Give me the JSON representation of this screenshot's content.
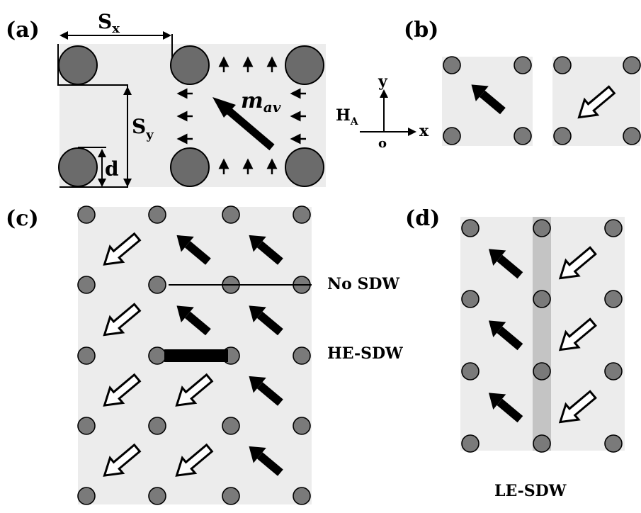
{
  "panels": {
    "a": {
      "label": "(a)",
      "sx": "S",
      "sx_sub": "x",
      "sy": "S",
      "sy_sub": "y",
      "d": "d",
      "m": "m",
      "m_sub": "av"
    },
    "b": {
      "label": "(b)"
    },
    "c": {
      "label": "(c)",
      "no_sdw": "No SDW",
      "he_sdw": "HE-SDW"
    },
    "d": {
      "label": "(d)",
      "le_sdw": "LE-SDW"
    }
  },
  "axes": {
    "y": "y",
    "x": "x",
    "origin": "o",
    "field": "H",
    "field_sub": "A"
  },
  "colors": {
    "panel_bg": "#ececec",
    "dot_fill": "#7a7a7a",
    "stripe": "#c4c4c4"
  },
  "magnetization_states": {
    "legend": [
      "up-left (filled arrow)",
      "down-left (open arrow)"
    ],
    "panel_c_rows": [
      [
        "down-left",
        "up-left",
        "up-left"
      ],
      [
        "down-left",
        "up-left",
        "up-left"
      ],
      [
        "down-left",
        "down-left",
        "up-left"
      ],
      [
        "down-left",
        "down-left",
        "up-left"
      ]
    ],
    "panel_d_rows": [
      [
        "up-left",
        "down-left"
      ],
      [
        "up-left",
        "down-left"
      ],
      [
        "up-left",
        "down-left"
      ]
    ]
  }
}
